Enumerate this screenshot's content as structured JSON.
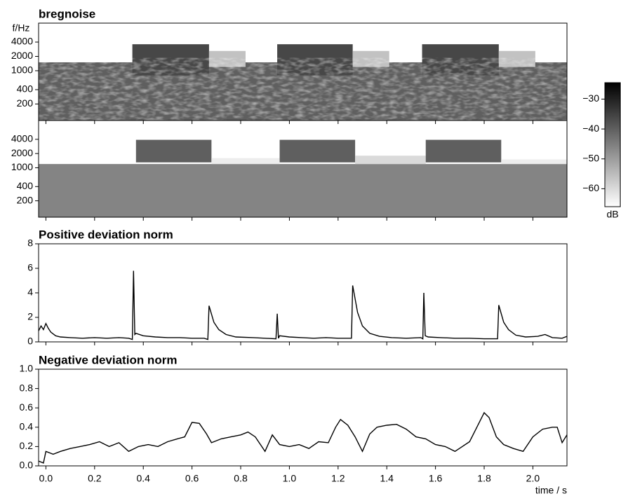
{
  "chart_data": [
    {
      "type": "spectrogram",
      "title": "bregnoise",
      "ylabel": "f/Hz",
      "ylog": true,
      "xlim": [
        -0.03,
        2.14
      ],
      "ylim": [
        90,
        10000
      ],
      "yticks": [
        4000,
        2000,
        1000,
        400,
        200
      ],
      "texture": true,
      "regions": [
        {
          "t": [
            -0.03,
            2.14
          ],
          "f": [
            90,
            1500
          ],
          "db": -40
        },
        {
          "t": [
            0.355,
            0.67
          ],
          "f": [
            800,
            3600
          ],
          "db": -36
        },
        {
          "t": [
            0.67,
            0.82
          ],
          "f": [
            1200,
            2600
          ],
          "db": -56
        },
        {
          "t": [
            0.95,
            1.26
          ],
          "f": [
            800,
            3600
          ],
          "db": -36
        },
        {
          "t": [
            1.26,
            1.41
          ],
          "f": [
            1200,
            2600
          ],
          "db": -56
        },
        {
          "t": [
            1.545,
            1.86
          ],
          "f": [
            800,
            3600
          ],
          "db": -36
        },
        {
          "t": [
            1.86,
            2.01
          ],
          "f": [
            1200,
            2600
          ],
          "db": -56
        }
      ],
      "colorbar": {
        "clim": [
          -66,
          -24.5
        ],
        "label": "dB",
        "ticks": [
          {
            "value": -30,
            "label": "−30"
          },
          {
            "value": -40,
            "label": "−40"
          },
          {
            "value": -50,
            "label": "−50"
          },
          {
            "value": -60,
            "label": "−60"
          }
        ]
      }
    },
    {
      "type": "spectrogram",
      "ylog": true,
      "xlim": [
        -0.03,
        2.14
      ],
      "ylim": [
        90,
        10000
      ],
      "yticks": [
        4000,
        2000,
        1000,
        400,
        200
      ],
      "texture": false,
      "regions": [
        {
          "t": [
            -0.03,
            2.14
          ],
          "f": [
            90,
            1200
          ],
          "db": -46
        },
        {
          "t": [
            0.37,
            0.68
          ],
          "f": [
            1300,
            3900
          ],
          "db": -40
        },
        {
          "t": [
            0.68,
            0.96
          ],
          "f": [
            1200,
            1600
          ],
          "db": -63
        },
        {
          "t": [
            0.96,
            1.27
          ],
          "f": [
            1300,
            3900
          ],
          "db": -40
        },
        {
          "t": [
            1.27,
            1.56
          ],
          "f": [
            1200,
            1800
          ],
          "db": -60
        },
        {
          "t": [
            1.56,
            1.87
          ],
          "f": [
            1300,
            3900
          ],
          "db": -40
        },
        {
          "t": [
            1.87,
            2.14
          ],
          "f": [
            1200,
            1500
          ],
          "db": -63
        }
      ]
    },
    {
      "type": "line",
      "title": "Positive deviation norm",
      "xlim": [
        -0.03,
        2.14
      ],
      "ylim": [
        0,
        8
      ],
      "yticks": [
        0,
        2,
        4,
        6,
        8
      ],
      "color": "#000000",
      "x": [
        -0.03,
        -0.02,
        -0.01,
        0.0,
        0.01,
        0.02,
        0.04,
        0.06,
        0.1,
        0.15,
        0.2,
        0.25,
        0.3,
        0.34,
        0.355,
        0.36,
        0.365,
        0.37,
        0.4,
        0.45,
        0.5,
        0.55,
        0.6,
        0.65,
        0.665,
        0.67,
        0.69,
        0.71,
        0.74,
        0.78,
        0.85,
        0.9,
        0.945,
        0.95,
        0.955,
        0.96,
        1.0,
        1.05,
        1.1,
        1.15,
        1.2,
        1.24,
        1.255,
        1.26,
        1.28,
        1.3,
        1.33,
        1.37,
        1.42,
        1.48,
        1.54,
        1.548,
        1.552,
        1.558,
        1.57,
        1.62,
        1.68,
        1.74,
        1.8,
        1.855,
        1.86,
        1.88,
        1.9,
        1.93,
        1.97,
        2.02,
        2.05,
        2.08,
        2.12,
        2.14
      ],
      "values": [
        0.9,
        1.3,
        1.0,
        1.5,
        1.1,
        0.8,
        0.5,
        0.4,
        0.35,
        0.3,
        0.35,
        0.3,
        0.35,
        0.3,
        0.2,
        5.8,
        0.6,
        0.7,
        0.5,
        0.4,
        0.35,
        0.35,
        0.3,
        0.3,
        0.2,
        2.95,
        1.6,
        1.0,
        0.6,
        0.4,
        0.35,
        0.3,
        0.25,
        2.3,
        0.3,
        0.5,
        0.4,
        0.35,
        0.3,
        0.35,
        0.3,
        0.3,
        0.3,
        4.6,
        2.4,
        1.3,
        0.7,
        0.45,
        0.35,
        0.3,
        0.35,
        0.25,
        4.0,
        0.5,
        0.4,
        0.35,
        0.3,
        0.3,
        0.25,
        0.25,
        3.0,
        1.6,
        1.0,
        0.55,
        0.4,
        0.45,
        0.6,
        0.35,
        0.3,
        0.45
      ]
    },
    {
      "type": "line",
      "title": "Negative deviation norm",
      "xlabel": "time / s",
      "xlim": [
        -0.03,
        2.14
      ],
      "ylim": [
        0,
        1
      ],
      "yticks": [
        {
          "value": 0,
          "label": "0.0"
        },
        0.2,
        0.4,
        0.6,
        0.8,
        {
          "value": 1,
          "label": "1.0"
        }
      ],
      "xticks": [
        {
          "value": 0,
          "label": "0.0"
        },
        0.2,
        0.4,
        0.6,
        0.8,
        {
          "value": 1,
          "label": "1.0"
        },
        1.2,
        1.4,
        1.6,
        1.8,
        {
          "value": 2,
          "label": "2.0"
        }
      ],
      "color": "#000000",
      "x": [
        -0.03,
        -0.01,
        0.0,
        0.03,
        0.06,
        0.1,
        0.14,
        0.18,
        0.22,
        0.26,
        0.3,
        0.34,
        0.38,
        0.42,
        0.46,
        0.5,
        0.54,
        0.57,
        0.6,
        0.63,
        0.66,
        0.68,
        0.72,
        0.76,
        0.8,
        0.83,
        0.86,
        0.9,
        0.93,
        0.96,
        1.0,
        1.04,
        1.08,
        1.12,
        1.16,
        1.19,
        1.21,
        1.24,
        1.27,
        1.3,
        1.33,
        1.36,
        1.4,
        1.44,
        1.48,
        1.52,
        1.56,
        1.6,
        1.64,
        1.68,
        1.71,
        1.74,
        1.77,
        1.8,
        1.82,
        1.85,
        1.88,
        1.92,
        1.96,
        2.0,
        2.04,
        2.08,
        2.1,
        2.12,
        2.14
      ],
      "values": [
        0.05,
        0.03,
        0.15,
        0.12,
        0.15,
        0.18,
        0.2,
        0.22,
        0.25,
        0.2,
        0.24,
        0.15,
        0.2,
        0.22,
        0.2,
        0.25,
        0.28,
        0.3,
        0.45,
        0.44,
        0.33,
        0.24,
        0.28,
        0.3,
        0.32,
        0.35,
        0.3,
        0.15,
        0.32,
        0.22,
        0.2,
        0.22,
        0.18,
        0.25,
        0.24,
        0.4,
        0.48,
        0.42,
        0.3,
        0.15,
        0.33,
        0.4,
        0.42,
        0.43,
        0.38,
        0.3,
        0.28,
        0.22,
        0.2,
        0.15,
        0.2,
        0.25,
        0.4,
        0.55,
        0.5,
        0.3,
        0.22,
        0.18,
        0.15,
        0.3,
        0.38,
        0.4,
        0.4,
        0.24,
        0.32
      ]
    }
  ]
}
